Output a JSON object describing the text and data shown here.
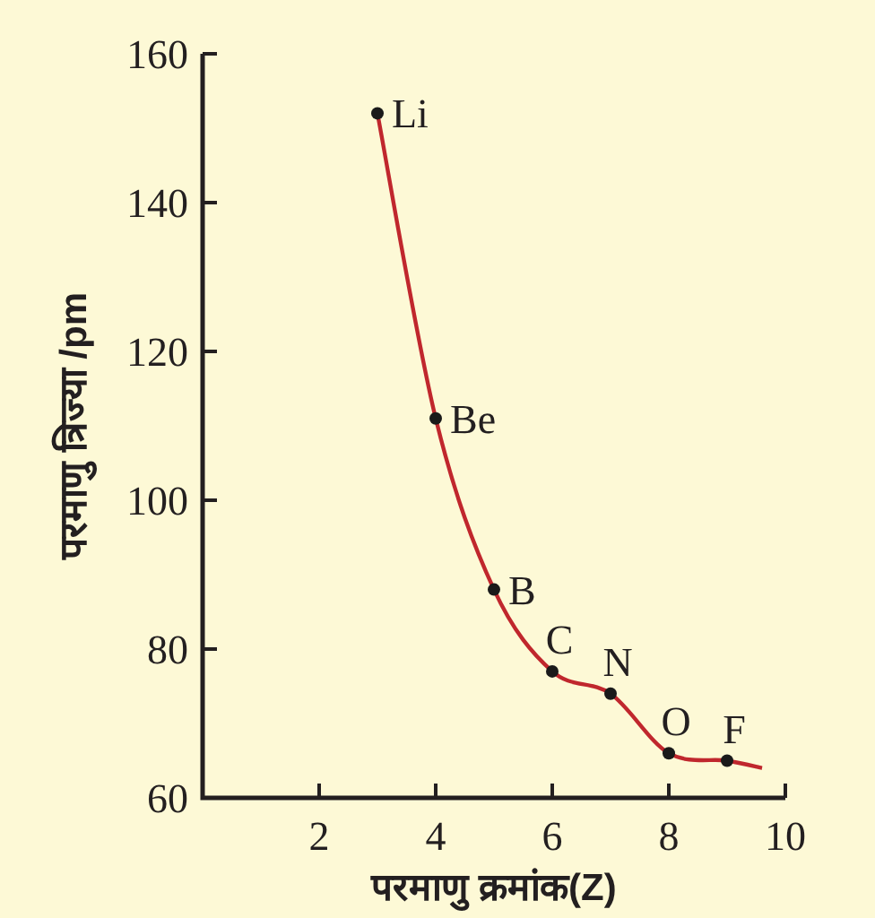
{
  "chart_data": {
    "type": "line",
    "xlabel": "परमाणु क्रमांक(Z)",
    "ylabel": "परमाणु त्रिज्या /pm",
    "xlim": [
      0,
      10
    ],
    "ylim": [
      60,
      160
    ],
    "xticks": [
      2,
      4,
      6,
      8,
      10
    ],
    "yticks": [
      60,
      80,
      100,
      120,
      140,
      160
    ],
    "grid": false,
    "series": [
      {
        "color": "#c0272d",
        "marker": "none",
        "x": [
          3,
          4,
          5,
          6,
          7,
          8,
          9,
          9.6
        ],
        "values": [
          152,
          111,
          88,
          77,
          74,
          66,
          65,
          64
        ]
      },
      {
        "type": "scatter",
        "color": "#1a1a1a",
        "marker": "circle",
        "x": [
          3,
          4,
          5,
          6,
          7,
          8,
          9
        ],
        "values": [
          152,
          111,
          88,
          77,
          74,
          66,
          65
        ]
      }
    ],
    "annotations": [
      {
        "text": "Li",
        "x": 3,
        "y": 152
      },
      {
        "text": "Be",
        "x": 4,
        "y": 111
      },
      {
        "text": "B",
        "x": 5,
        "y": 88
      },
      {
        "text": "C",
        "x": 6,
        "y": 77
      },
      {
        "text": "N",
        "x": 7,
        "y": 74
      },
      {
        "text": "O",
        "x": 8,
        "y": 66
      },
      {
        "text": "F",
        "x": 9,
        "y": 65
      }
    ]
  }
}
